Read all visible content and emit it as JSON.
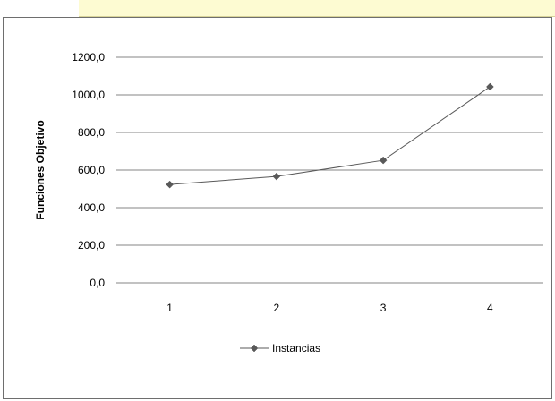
{
  "chart_data": {
    "type": "line",
    "categories": [
      "1",
      "2",
      "3",
      "4"
    ],
    "series": [
      {
        "name": "Instancias",
        "values": [
          523,
          566,
          652,
          1043
        ],
        "color": "#595959",
        "marker": "diamond"
      }
    ],
    "title": "",
    "xlabel": "",
    "ylabel": "Funciones Objetivo",
    "ylim": [
      0,
      1200
    ],
    "yticks": [
      0,
      200,
      400,
      600,
      800,
      1000,
      1200
    ],
    "ytick_labels": [
      "0,0",
      "200,0",
      "400,0",
      "600,0",
      "800,0",
      "1000,0",
      "1200,0"
    ],
    "grid": true,
    "legend": "bottom",
    "gridline_color": "#868686"
  }
}
